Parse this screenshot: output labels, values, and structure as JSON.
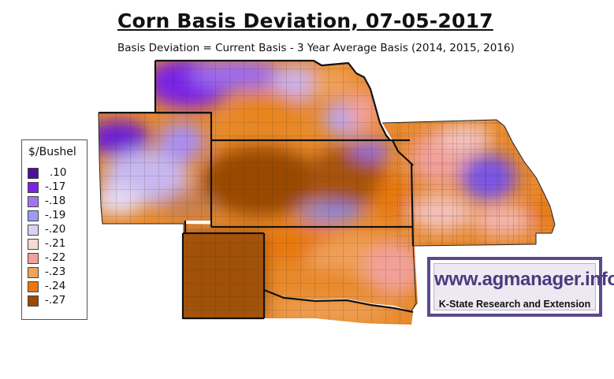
{
  "title": "Corn Basis Deviation, 07-05-2017",
  "subtitle": "Basis Deviation = Current Basis - 3 Year Average Basis (2014, 2015, 2016)",
  "legend": {
    "title": "$/Bushel",
    "items": [
      {
        "label": ".10",
        "color": "#4b0f9c"
      },
      {
        "label": "-.17",
        "color": "#7a22e6"
      },
      {
        "label": "-.18",
        "color": "#a874ee"
      },
      {
        "label": "-.19",
        "color": "#9c9cf4"
      },
      {
        "label": "-.20",
        "color": "#ddd0f4"
      },
      {
        "label": "-.21",
        "color": "#f6dcd6"
      },
      {
        "label": "-.22",
        "color": "#f2a09a"
      },
      {
        "label": "-.23",
        "color": "#f0a35a"
      },
      {
        "label": "-.24",
        "color": "#e87810"
      },
      {
        "label": "-.27",
        "color": "#9a4a06"
      }
    ]
  },
  "logo": {
    "url_text": "www.agmanager.info",
    "org_text": "K-State Research and Extension"
  }
}
